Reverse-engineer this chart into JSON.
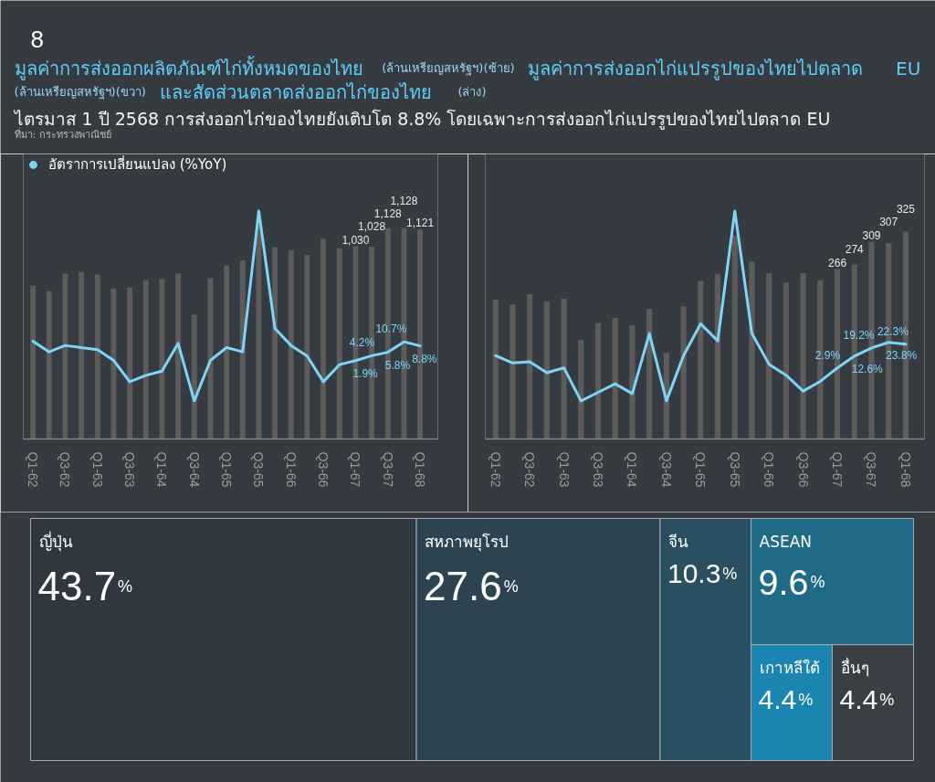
{
  "chart_data": [
    {
      "type": "bar",
      "title": "มูลค่าการส่งออกผลิตภัณฑ์ไก่ทั้งหมดของไทย (ล้านเหรียญสหรัฐฯ)(ซ้าย) มูลค่าการส่งออกไก่แปรรูปของไทยไปตลาด EU (ล้านเหรียญสหรัฐฯ)(ขวา) และสัดส่วนตลาดส่งออกไก่ของไทย (ล่าง)",
      "subtitle": "ไตรมาส 1 ปี 2568 การส่งออกไก่ของไทยยังเติบโต 8.8% โดยเฉพาะการส่งออกไก่แปรรูปของไทยไปตลาด EU",
      "annotations": [
        "8",
        "ที่มา: กระทรวงพาณิชย์"
      ],
      "categories": [
        "Q1-62",
        null,
        "Q3-62",
        null,
        "Q1-63",
        null,
        "Q3-63",
        null,
        "Q1-64",
        null,
        "Q3-64",
        null,
        "Q1-65",
        null,
        "Q3-65",
        null,
        "Q1-66",
        null,
        "Q3-66",
        null,
        "Q1-67",
        null,
        "Q3-67",
        null,
        "Q1-68"
      ],
      "series": [
        {
          "type": "bar",
          "color": "#5e5c5a",
          "values": [
            820,
            790,
            885,
            895,
            880,
            805,
            810,
            850,
            855,
            885,
            665,
            860,
            930,
            955,
            1170,
            1025,
            1010,
            985,
            1070,
            1020,
            1030,
            1028,
            1128,
            1128,
            1121
          ],
          "value_labels": [
            null,
            null,
            null,
            null,
            null,
            null,
            null,
            null,
            null,
            null,
            null,
            null,
            null,
            null,
            null,
            null,
            null,
            null,
            null,
            null,
            "1,030",
            "1,028",
            "1,128",
            "1,128",
            "1,121"
          ]
        },
        {
          "type": "line",
          "name": "อัตราการเปลี่ยนแปลง (%YoY)",
          "axis": "y2",
          "color": "#7fd5f7",
          "values": [
            11,
            6,
            9,
            8,
            7,
            2,
            -8,
            -5,
            -3,
            10,
            -17,
            2,
            8,
            6,
            72,
            17,
            9,
            4,
            -8,
            0,
            1.9,
            4.2,
            5.8,
            10.7,
            8.8
          ],
          "value_labels": [
            null,
            null,
            null,
            null,
            null,
            null,
            null,
            null,
            null,
            null,
            null,
            null,
            null,
            null,
            null,
            null,
            null,
            null,
            null,
            null,
            "1.9%",
            "4.2%",
            "5.8%",
            "10.7%",
            "8.8%"
          ]
        }
      ],
      "ylim": [
        0,
        1525
      ],
      "tick_labels": "x",
      "legend": "top left"
    },
    {
      "type": "bar",
      "categories": [
        "Q1-62",
        null,
        "Q3-62",
        null,
        "Q1-63",
        null,
        "Q3-63",
        null,
        "Q1-64",
        null,
        "Q3-64",
        null,
        "Q1-65",
        null,
        "Q3-65",
        null,
        "Q1-66",
        null,
        "Q3-66",
        null,
        "Q1-67",
        null,
        "Q3-67",
        null,
        "Q1-68"
      ],
      "series": [
        {
          "type": "bar",
          "color": "#5e5c5a",
          "values": [
            218,
            211,
            227,
            216,
            220,
            155,
            182,
            190,
            178,
            204,
            135,
            208,
            248,
            259,
            319,
            278,
            260,
            245,
            260,
            249,
            266,
            274,
            309,
            307,
            325
          ],
          "value_labels": [
            null,
            null,
            null,
            null,
            null,
            null,
            null,
            null,
            null,
            null,
            null,
            null,
            null,
            null,
            null,
            null,
            null,
            null,
            null,
            null,
            "266",
            "274",
            "309",
            "307",
            "325"
          ]
        },
        {
          "type": "line",
          "axis": "y2",
          "color": "#7fd5f7",
          "values": [
            13,
            7,
            8,
            -1,
            3,
            -24,
            -17,
            -10,
            -18,
            31,
            -24,
            13,
            39,
            25,
            131,
            31,
            6,
            -3,
            -16,
            -8,
            2.9,
            12.6,
            19.2,
            23.8,
            22.3
          ],
          "value_labels": [
            null,
            null,
            null,
            null,
            null,
            null,
            null,
            null,
            null,
            null,
            null,
            null,
            null,
            null,
            null,
            null,
            null,
            null,
            null,
            null,
            "2.9%",
            "12.6%",
            "19.2%",
            "23.8%",
            "22.3%"
          ]
        }
      ],
      "ylim": [
        0,
        447
      ],
      "tick_labels": "x"
    },
    {
      "type": "other",
      "categories": [
        "ญี่ปุ่น",
        "สหภาพยุโรป",
        "จีน",
        "ASEAN",
        "เกาหลีใต้",
        "อื่นๆ"
      ],
      "values": [
        43.7,
        27.6,
        10.3,
        9.6,
        4.4,
        4.4
      ],
      "value_labels": [
        "43.7%",
        "27.6%",
        "10.3%",
        "9.6%",
        "4.4%",
        "4.4%"
      ],
      "colors": [
        "#2f3841",
        "#2d4350",
        "#2a4f60",
        "#1f6a87",
        "#1a85b0",
        "#3b3f45"
      ]
    }
  ]
}
